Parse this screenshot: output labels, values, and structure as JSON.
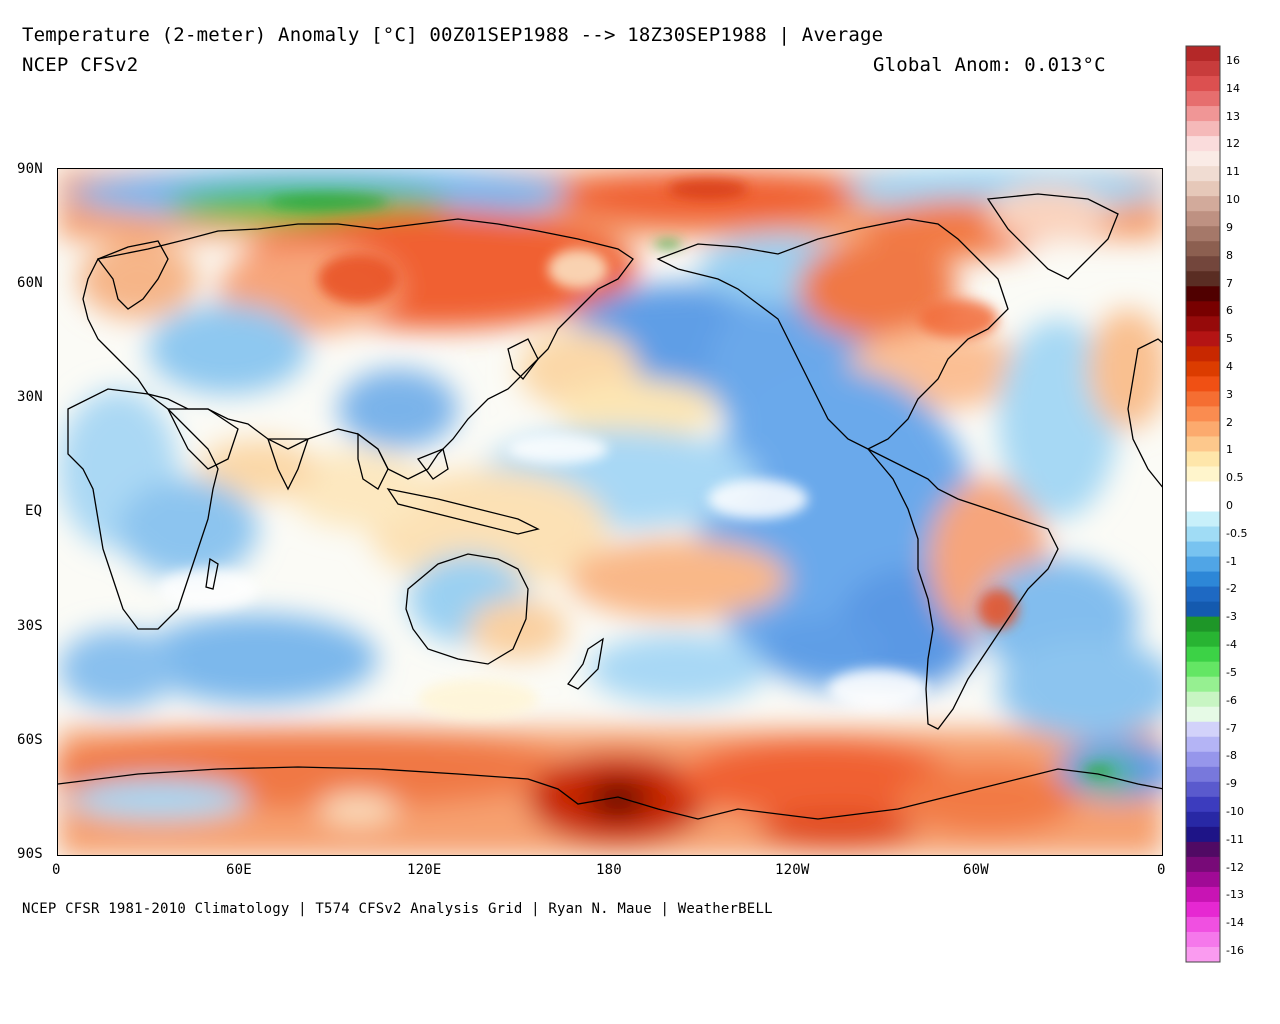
{
  "header": {
    "title": "Temperature (2-meter) Anomaly  [°C] 00Z01SEP1988 --> 18Z30SEP1988 | Average",
    "model": "NCEP CFSv2",
    "global_anom": "Global Anom: 0.013°C"
  },
  "footer": {
    "credits": "NCEP CFSR 1981-2010 Climatology | T574 CFSv2 Analysis Grid | Ryan N. Maue | WeatherBELL"
  },
  "axes": {
    "lat_ticks": [
      "90N",
      "60N",
      "30N",
      "EQ",
      "30S",
      "60S",
      "90S"
    ],
    "lon_ticks": [
      "0",
      "60E",
      "120E",
      "180",
      "120W",
      "60W",
      "0"
    ]
  },
  "colorbar": {
    "labels": [
      "16",
      "14",
      "13",
      "12",
      "11",
      "10",
      "9",
      "8",
      "7",
      "6",
      "5",
      "4",
      "3",
      "2",
      "1",
      "0.5",
      "0",
      "-0.5",
      "-1",
      "-2",
      "-3",
      "-4",
      "-5",
      "-6",
      "-7",
      "-8",
      "-9",
      "-10",
      "-11",
      "-12",
      "-13",
      "-14",
      "-16"
    ],
    "colors": [
      "#b42828",
      "#c83c3c",
      "#dc5050",
      "#e66e6e",
      "#f09696",
      "#f5b9b9",
      "#fadcdc",
      "#faebe6",
      "#f0dcd2",
      "#e6c8b9",
      "#d2aa9b",
      "#be9182",
      "#a57869",
      "#8c5f50",
      "#73463c",
      "#5a2d23",
      "#500000",
      "#780000",
      "#960a0a",
      "#b41414",
      "#c82800",
      "#dc3c00",
      "#f05014",
      "#f56e32",
      "#fa8c50",
      "#fcaa6e",
      "#fdc88c",
      "#fee6aa",
      "#fff5cc",
      "#ffffff",
      "#ffffff",
      "#c8f0fa",
      "#a0dcf5",
      "#78c3f0",
      "#50a5e6",
      "#2d87d7",
      "#1e69c3",
      "#145aaf",
      "#1e9628",
      "#28b432",
      "#3cd246",
      "#64e664",
      "#96f091",
      "#c8f5c3",
      "#e6fae6",
      "#d2d2fa",
      "#b4b4f5",
      "#9696eb",
      "#7878dc",
      "#5a5acd",
      "#3c3cbe",
      "#2828a5",
      "#1e1487",
      "#500a64",
      "#780a78",
      "#a00a96",
      "#c814b4",
      "#e628d2",
      "#f050e1",
      "#f578eb",
      "#fa9bf0"
    ]
  }
}
